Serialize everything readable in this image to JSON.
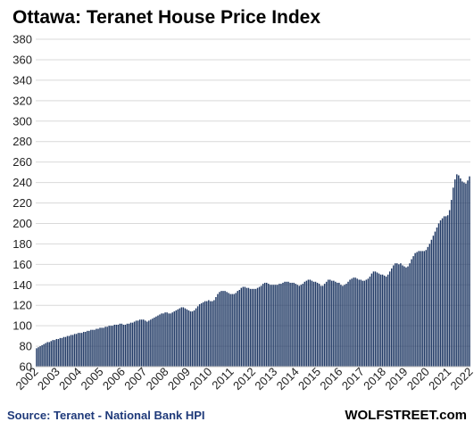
{
  "chart_data": {
    "type": "bar",
    "title": "Ottawa: Teranet House Price Index",
    "xlabel": "",
    "ylabel": "",
    "ylim": [
      60,
      380
    ],
    "yticks": [
      60,
      80,
      100,
      120,
      140,
      160,
      180,
      200,
      220,
      240,
      260,
      280,
      300,
      320,
      340,
      360,
      380
    ],
    "xticks": [
      "2002",
      "2003",
      "2004",
      "2005",
      "2006",
      "2007",
      "2008",
      "2009",
      "2010",
      "2011",
      "2012",
      "2013",
      "2014",
      "2015",
      "2016",
      "2017",
      "2018",
      "2019",
      "2020",
      "2021",
      "2022"
    ],
    "grid": "horizontal",
    "legend": "none",
    "bar_color": "#1f3864",
    "frequency": "monthly",
    "start": "2002-01",
    "end": "2022-07",
    "values": [
      78,
      79,
      80,
      81,
      82,
      83,
      84,
      84,
      85,
      86,
      86,
      87,
      87,
      88,
      88,
      89,
      89,
      90,
      90,
      91,
      91,
      92,
      92,
      93,
      93,
      93,
      94,
      94,
      95,
      95,
      96,
      96,
      96,
      97,
      97,
      98,
      98,
      98,
      99,
      99,
      100,
      100,
      100,
      101,
      101,
      101,
      102,
      102,
      101,
      101,
      102,
      102,
      103,
      103,
      104,
      105,
      105,
      106,
      106,
      106,
      105,
      104,
      105,
      106,
      107,
      108,
      109,
      110,
      111,
      112,
      112,
      113,
      113,
      112,
      112,
      113,
      114,
      115,
      116,
      117,
      118,
      118,
      117,
      116,
      115,
      114,
      114,
      115,
      117,
      119,
      121,
      122,
      123,
      124,
      124,
      125,
      124,
      124,
      125,
      128,
      131,
      133,
      134,
      134,
      134,
      133,
      132,
      131,
      131,
      131,
      132,
      134,
      135,
      137,
      138,
      138,
      137,
      137,
      136,
      136,
      136,
      136,
      137,
      138,
      139,
      141,
      142,
      142,
      141,
      140,
      140,
      140,
      140,
      140,
      141,
      141,
      142,
      143,
      143,
      143,
      142,
      142,
      142,
      141,
      140,
      139,
      140,
      141,
      143,
      144,
      145,
      145,
      144,
      143,
      143,
      142,
      141,
      139,
      139,
      141,
      143,
      145,
      145,
      144,
      144,
      143,
      142,
      142,
      140,
      139,
      140,
      141,
      143,
      145,
      146,
      147,
      147,
      146,
      145,
      145,
      144,
      144,
      145,
      146,
      148,
      151,
      153,
      153,
      152,
      151,
      150,
      150,
      149,
      148,
      150,
      153,
      156,
      159,
      161,
      161,
      160,
      161,
      159,
      158,
      157,
      158,
      161,
      165,
      168,
      171,
      172,
      173,
      173,
      173,
      173,
      174,
      177,
      180,
      184,
      188,
      192,
      196,
      200,
      203,
      205,
      207,
      207,
      208,
      213,
      223,
      235,
      243,
      248,
      247,
      244,
      241,
      240,
      239,
      242,
      246
    ]
  },
  "source": "Source: Teranet - National Bank HPI",
  "watermark": "WOLFSTREET.com"
}
